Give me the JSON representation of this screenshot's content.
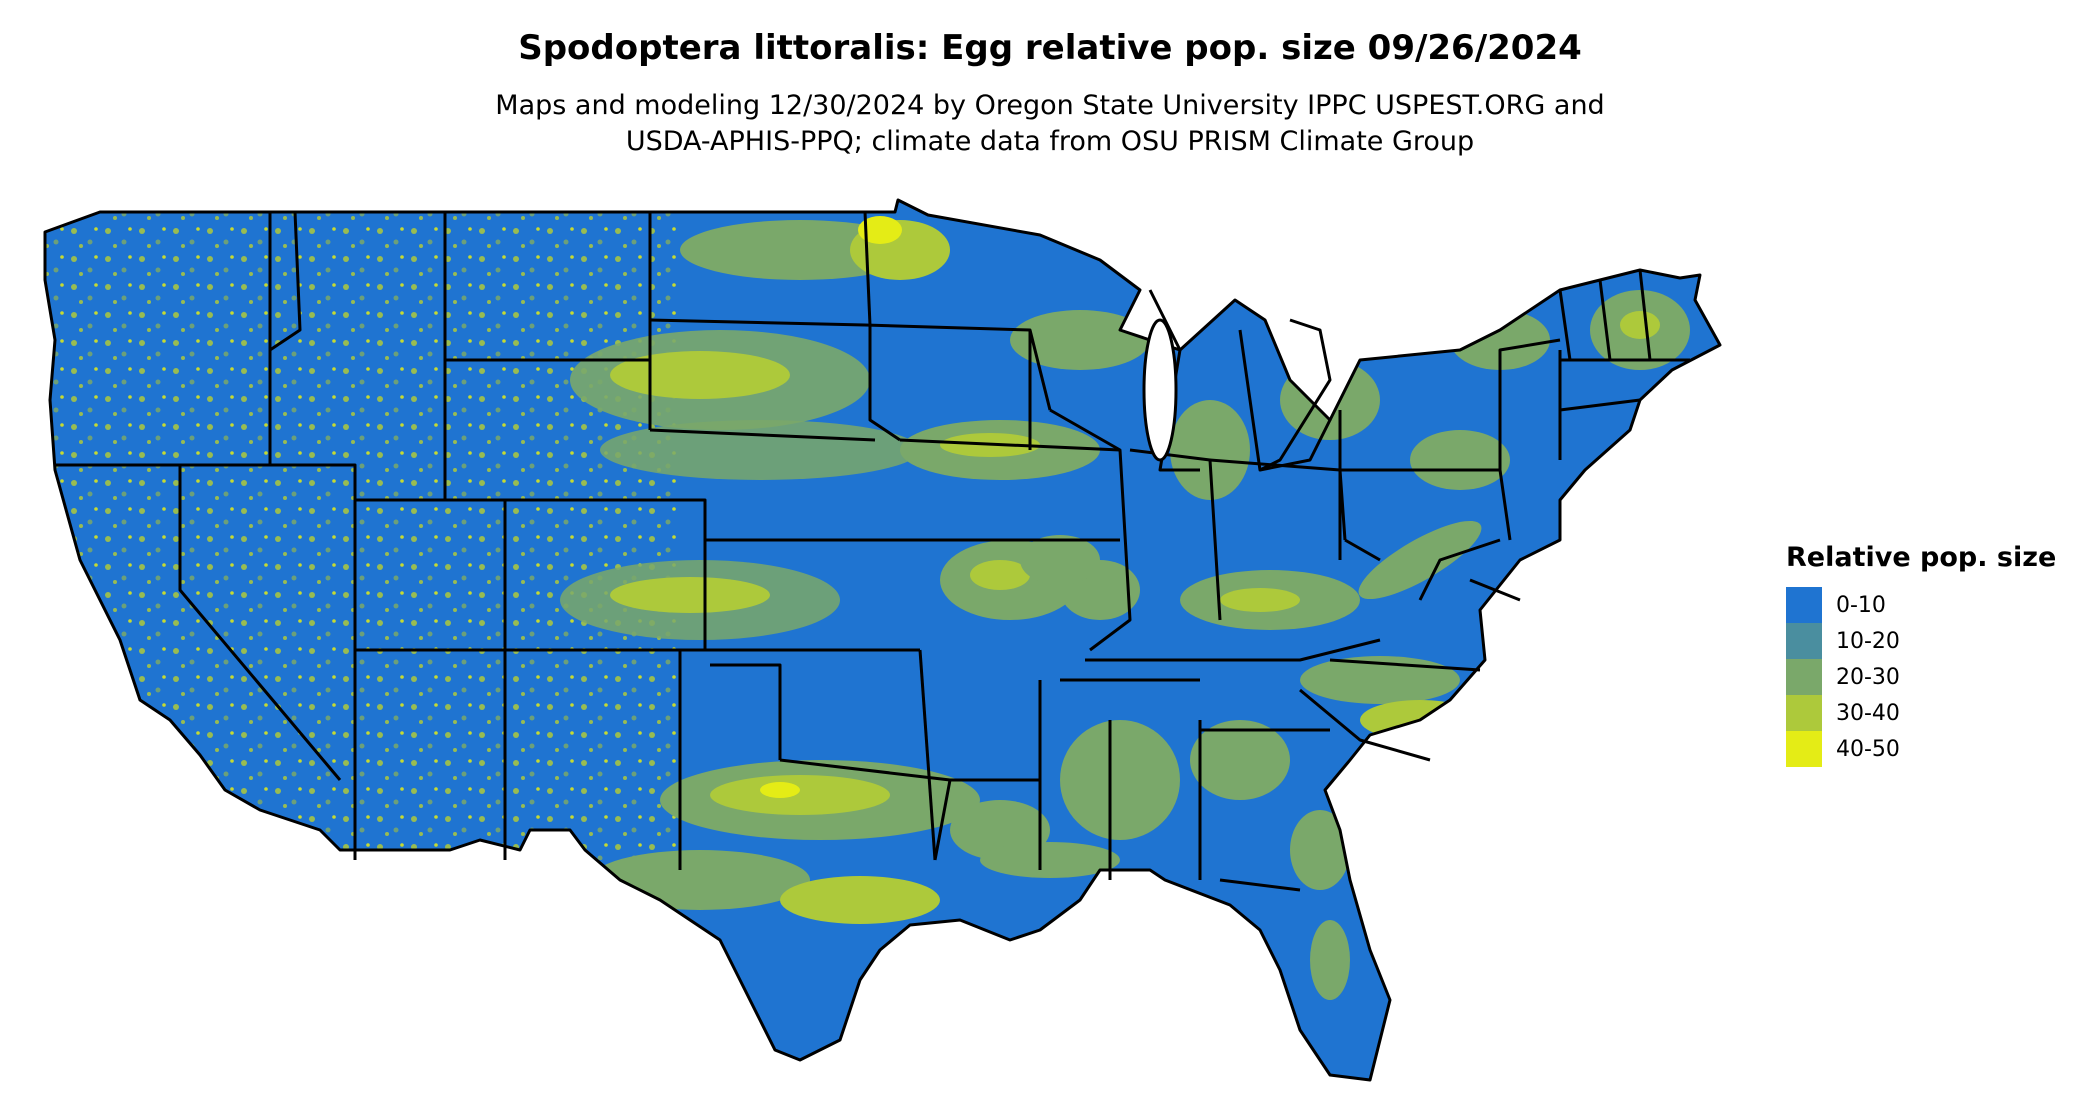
{
  "title": "Spodoptera littoralis: Egg relative pop. size 09/26/2024",
  "subtitle_line1": "Maps and modeling 12/30/2024 by Oregon State University IPPC USPEST.ORG and",
  "subtitle_line2": "USDA-APHIS-PPQ; climate data from OSU PRISM Climate Group",
  "legend": {
    "title": "Relative pop. size",
    "items": [
      {
        "label": "0-10",
        "color": "#1f74d1"
      },
      {
        "label": "10-20",
        "color": "#4a8e9f"
      },
      {
        "label": "20-30",
        "color": "#7aa86a"
      },
      {
        "label": "30-40",
        "color": "#adc93b"
      },
      {
        "label": "40-50",
        "color": "#e4ec16"
      }
    ]
  },
  "colors": {
    "background": "#ffffff",
    "border": "#000000",
    "water_fill": "#ffffff"
  }
}
